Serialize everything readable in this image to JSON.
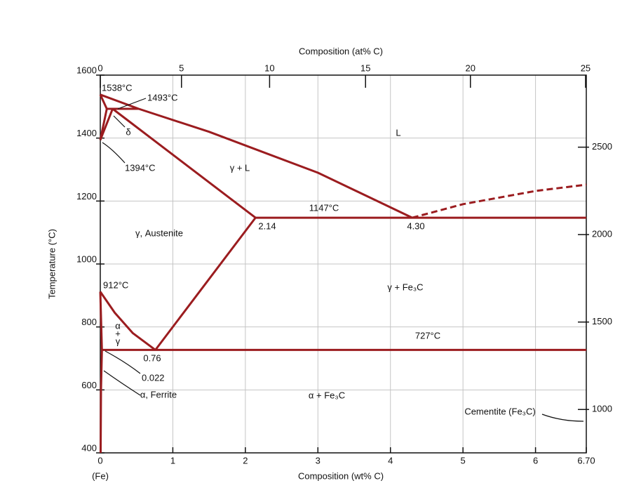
{
  "chart_data": {
    "type": "line",
    "x_label": "Composition (wt% C)",
    "x2_label": "Composition (at% C)",
    "y_label": "Temperature (°C)",
    "x_note": "(Fe)",
    "xlim": [
      0,
      6.7
    ],
    "xticks": [
      0,
      1,
      2,
      3,
      4,
      5,
      6,
      {
        "value": 6.7,
        "label": "6.70"
      }
    ],
    "x2lim": [
      0,
      25
    ],
    "x2ticks": [
      0,
      5,
      10,
      15,
      20,
      25
    ],
    "ylim": [
      400,
      1600
    ],
    "yticks": [
      400,
      600,
      800,
      1000,
      1200,
      1400,
      1600
    ],
    "y2ticks": [
      1000,
      1500,
      2000,
      2500
    ],
    "grid": true,
    "series": [
      {
        "color": "#9b1c1f",
        "x": [
          0,
          0.53,
          1.5,
          3,
          4.3
        ],
        "values": [
          1538,
          1493,
          1420,
          1290,
          1147
        ]
      },
      {
        "color": "#9b1c1f",
        "dashed": true,
        "x": [
          4.3,
          5,
          6,
          6.7
        ],
        "values": [
          1147,
          1190,
          1232,
          1252
        ]
      },
      {
        "color": "#9b1c1f",
        "x": [
          0,
          0.09
        ],
        "values": [
          1538,
          1493
        ]
      },
      {
        "color": "#9b1c1f",
        "x": [
          0.09,
          0.53
        ],
        "values": [
          1493,
          1493
        ]
      },
      {
        "color": "#9b1c1f",
        "x": [
          0,
          0.09
        ],
        "values": [
          1394,
          1493
        ]
      },
      {
        "color": "#9b1c1f",
        "x": [
          0,
          0.17
        ],
        "values": [
          1394,
          1493
        ]
      },
      {
        "color": "#9b1c1f",
        "x": [
          0.17,
          2.14
        ],
        "values": [
          1493,
          1147
        ]
      },
      {
        "color": "#9b1c1f",
        "x": [
          2.14,
          6.7
        ],
        "values": [
          1147,
          1147
        ]
      },
      {
        "color": "#9b1c1f",
        "x": [
          2.14,
          0.76
        ],
        "values": [
          1147,
          727
        ]
      },
      {
        "color": "#9b1c1f",
        "x": [
          0,
          0.2,
          0.45,
          0.76
        ],
        "values": [
          912,
          845,
          780,
          727
        ]
      },
      {
        "color": "#9b1c1f",
        "x": [
          0,
          0.022
        ],
        "values": [
          912,
          727
        ]
      },
      {
        "color": "#9b1c1f",
        "x": [
          0.022,
          6.7
        ],
        "values": [
          727,
          727
        ]
      },
      {
        "color": "#9b1c1f",
        "x": [
          0.022,
          0.01,
          0.005
        ],
        "values": [
          727,
          600,
          400
        ]
      }
    ],
    "annotations": [
      "1538°C",
      "1493°C",
      "δ",
      "1394°C",
      "γ + L",
      "L",
      "1147°C",
      "2.14",
      "4.30",
      "γ, Austenite",
      "912°C",
      "γ + Fe₃C",
      "727°C",
      "α",
      "+",
      "γ",
      "0.76",
      "0.022",
      "α, Ferrite",
      "α + Fe₃C",
      "Cementite (Fe₃C)"
    ]
  }
}
